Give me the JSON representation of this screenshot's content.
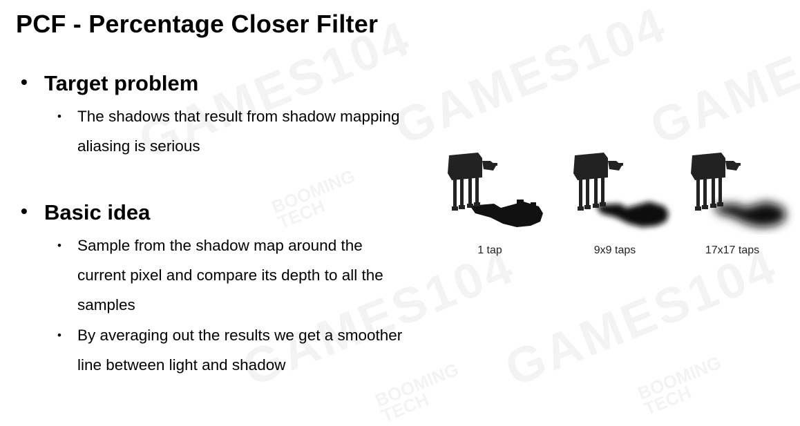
{
  "slide": {
    "title": "PCF - Percentage Closer Filter",
    "bullet_glyph": "•",
    "sections": [
      {
        "heading": "Target problem",
        "items": [
          {
            "lines": [
              "The shadows that result from shadow mapping",
              "aliasing is serious"
            ]
          }
        ]
      },
      {
        "heading": "Basic idea",
        "items": [
          {
            "lines": [
              "Sample from the shadow map around the",
              "current pixel and compare its depth to all the",
              "samples"
            ]
          },
          {
            "lines": [
              "By averaging out the results we get a smoother",
              "line between light and shadow"
            ]
          }
        ]
      }
    ]
  },
  "figure": {
    "captions": [
      "1 tap",
      "9x9 taps",
      "17x17 taps"
    ],
    "blur_levels": [
      0,
      0.5,
      1
    ]
  },
  "watermark": {
    "big": "GAMES104",
    "small_line1": "BOOMING",
    "small_line2": "TECH"
  }
}
